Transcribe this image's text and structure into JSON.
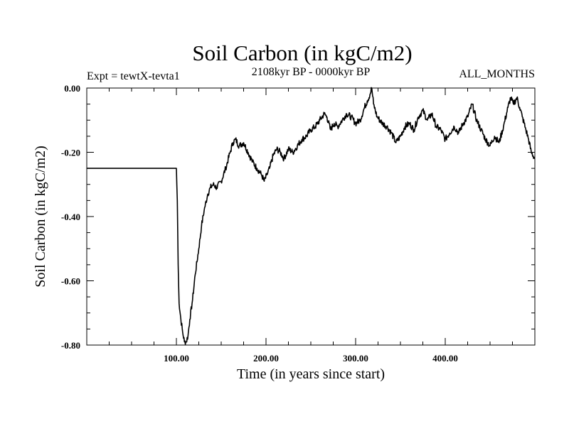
{
  "chart_data": {
    "type": "line",
    "title": "Soil Carbon (in kgC/m2)",
    "experiment": "Expt = tewtX-tevta1",
    "period": "2108kyr BP - 0000kyr BP",
    "months": "ALL_MONTHS",
    "xlabel": "Time (in years since start)",
    "ylabel": "Soil Carbon (in kgC/m2)",
    "xlim": [
      0,
      500
    ],
    "ylim": [
      -0.8,
      0.0
    ],
    "xticks": [
      100,
      200,
      300,
      400
    ],
    "xtick_labels": [
      "100.00",
      "200.00",
      "300.00",
      "400.00"
    ],
    "yticks": [
      0.0,
      -0.2,
      -0.4,
      -0.6,
      -0.8
    ],
    "ytick_labels": [
      "0.00",
      "-0.20",
      "-0.40",
      "-0.60",
      "-0.80"
    ],
    "grid": false,
    "series": [
      {
        "name": "Soil Carbon",
        "color": "#000000",
        "x": [
          0,
          100,
          101,
          102,
          103,
          105,
          107,
          109,
          111,
          113,
          115,
          118,
          121,
          125,
          128,
          131,
          135,
          138,
          141,
          145,
          150,
          155,
          160,
          163,
          166,
          170,
          175,
          180,
          185,
          190,
          195,
          198,
          201,
          204,
          208,
          212,
          216,
          220,
          225,
          230,
          235,
          240,
          245,
          250,
          255,
          260,
          265,
          268,
          272,
          276,
          280,
          285,
          290,
          295,
          300,
          305,
          310,
          313,
          316,
          318,
          320,
          324,
          330,
          335,
          340,
          345,
          350,
          355,
          360,
          365,
          370,
          375,
          380,
          385,
          390,
          395,
          400,
          405,
          410,
          415,
          420,
          425,
          430,
          435,
          440,
          445,
          450,
          455,
          460,
          465,
          470,
          473,
          476,
          480,
          483,
          486,
          490,
          493,
          496,
          500
        ],
        "y": [
          -0.25,
          -0.25,
          -0.35,
          -0.55,
          -0.67,
          -0.72,
          -0.76,
          -0.79,
          -0.79,
          -0.77,
          -0.72,
          -0.66,
          -0.58,
          -0.5,
          -0.43,
          -0.38,
          -0.33,
          -0.31,
          -0.3,
          -0.31,
          -0.29,
          -0.25,
          -0.2,
          -0.17,
          -0.16,
          -0.18,
          -0.17,
          -0.2,
          -0.23,
          -0.25,
          -0.27,
          -0.29,
          -0.27,
          -0.25,
          -0.21,
          -0.19,
          -0.2,
          -0.22,
          -0.19,
          -0.2,
          -0.18,
          -0.16,
          -0.15,
          -0.13,
          -0.12,
          -0.1,
          -0.08,
          -0.09,
          -0.13,
          -0.11,
          -0.12,
          -0.1,
          -0.08,
          -0.09,
          -0.11,
          -0.1,
          -0.06,
          -0.04,
          -0.02,
          0.0,
          -0.05,
          -0.09,
          -0.11,
          -0.12,
          -0.14,
          -0.17,
          -0.15,
          -0.12,
          -0.11,
          -0.13,
          -0.09,
          -0.07,
          -0.1,
          -0.08,
          -0.12,
          -0.13,
          -0.16,
          -0.14,
          -0.12,
          -0.14,
          -0.11,
          -0.09,
          -0.05,
          -0.1,
          -0.13,
          -0.16,
          -0.18,
          -0.15,
          -0.17,
          -0.12,
          -0.06,
          -0.03,
          -0.05,
          -0.03,
          -0.06,
          -0.09,
          -0.13,
          -0.16,
          -0.2,
          -0.22
        ]
      }
    ]
  }
}
